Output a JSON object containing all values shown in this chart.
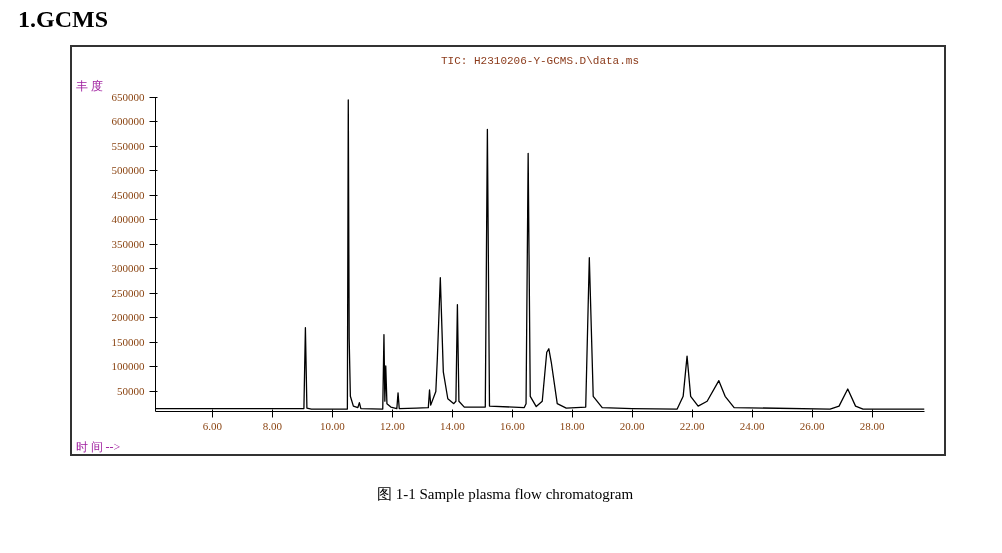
{
  "chart_data": {
    "type": "line",
    "title": "1.GCMS",
    "subtitle": "TIC: H2310206-Y-GCMS.D\\data.ms",
    "ylabel": "丰 度",
    "xlabel": "时 间 -->",
    "annotations": [
      "图 1-1    Sample plasma flow chromatogram"
    ],
    "x": [
      4.1,
      9.0,
      9.05,
      9.1,
      9.15,
      9.3,
      10.45,
      10.5,
      10.53,
      10.56,
      10.6,
      10.7,
      10.85,
      10.9,
      10.95,
      11.68,
      11.72,
      11.75,
      11.78,
      11.82,
      11.95,
      12.15,
      12.19,
      12.23,
      12.8,
      13.2,
      13.24,
      13.28,
      13.45,
      13.5,
      13.6,
      13.7,
      13.85,
      14.05,
      14.12,
      14.17,
      14.22,
      14.4,
      15.1,
      15.17,
      15.24,
      16.4,
      16.46,
      16.53,
      16.6,
      16.8,
      17.0,
      17.15,
      17.22,
      17.3,
      17.5,
      17.8,
      18.45,
      18.57,
      18.7,
      19.0,
      20.0,
      21.5,
      21.7,
      21.83,
      21.95,
      22.2,
      22.5,
      22.89,
      23.1,
      23.4,
      26.6,
      26.9,
      27.19,
      27.45,
      27.7,
      29.75
    ],
    "series": [
      {
        "color": "#000000",
        "values": [
          15000,
          15000,
          15000,
          180000,
          16000,
          14000,
          14000,
          14000,
          645000,
          158000,
          40000,
          20000,
          17000,
          27000,
          15000,
          14000,
          166000,
          30000,
          102000,
          25000,
          18000,
          15000,
          47000,
          15000,
          16000,
          17000,
          53000,
          22000,
          50000,
          116000,
          282000,
          90000,
          35000,
          25000,
          30000,
          227000,
          30000,
          18000,
          18000,
          585000,
          20000,
          17000,
          25000,
          536000,
          40000,
          19000,
          30000,
          130000,
          137000,
          110000,
          25000,
          16000,
          18000,
          323000,
          40000,
          17000,
          15000,
          14000,
          40000,
          122000,
          40000,
          20000,
          30000,
          72000,
          40000,
          17000,
          14000,
          20000,
          55000,
          20000,
          14000,
          14000
        ]
      }
    ],
    "xlim": [
      4.1,
      29.75
    ],
    "ylim": [
      9000,
      650000
    ],
    "xticks": [
      {
        "value": 6,
        "label": "6.00"
      },
      {
        "value": 8,
        "label": "8.00"
      },
      {
        "value": 10,
        "label": "10.00"
      },
      {
        "value": 12,
        "label": "12.00"
      },
      {
        "value": 14,
        "label": "14.00"
      },
      {
        "value": 16,
        "label": "16.00"
      },
      {
        "value": 18,
        "label": "18.00"
      },
      {
        "value": 20,
        "label": "20.00"
      },
      {
        "value": 22,
        "label": "22.00"
      },
      {
        "value": 24,
        "label": "24.00"
      },
      {
        "value": 26,
        "label": "26.00"
      },
      {
        "value": 28,
        "label": "28.00"
      }
    ],
    "yticks": [
      50000,
      100000,
      150000,
      200000,
      250000,
      300000,
      350000,
      400000,
      450000,
      500000,
      550000,
      600000,
      650000
    ],
    "grid": false,
    "line_style": "solid",
    "marker": "none"
  }
}
